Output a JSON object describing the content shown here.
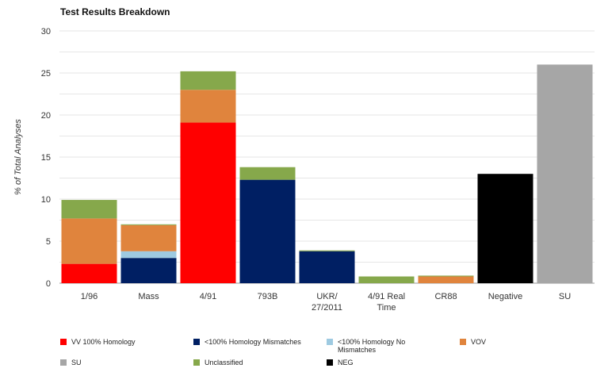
{
  "chart_data": {
    "type": "bar",
    "stacked": true,
    "title": "Test Results Breakdown",
    "xlabel": "",
    "ylabel": "% of Total Analyses",
    "ylim": [
      0,
      30
    ],
    "yticks": [
      0,
      5,
      10,
      15,
      20,
      25,
      30
    ],
    "grid": true,
    "legend_position": "bottom",
    "categories": [
      "1/96",
      "Mass",
      "4/91",
      "793B",
      "UKR/ 27/2011",
      "4/91 Real Time",
      "CR88",
      "Negative",
      "SU"
    ],
    "series": [
      {
        "name": "VV 100% Homology",
        "color": "#ff0000",
        "values": [
          2.3,
          0,
          19.1,
          0,
          0,
          0,
          0,
          0,
          0
        ]
      },
      {
        "name": "<100% Homology Mismatches",
        "color": "#001f63",
        "values": [
          0,
          3.0,
          0,
          12.3,
          3.8,
          0,
          0,
          0,
          0
        ]
      },
      {
        "name": "<100% Homology No Mismatches",
        "color": "#9ecae1",
        "values": [
          0,
          0.8,
          0,
          0,
          0,
          0,
          0,
          0,
          0
        ]
      },
      {
        "name": "VOV",
        "color": "#e0843d",
        "values": [
          5.4,
          3.1,
          3.9,
          0,
          0,
          0,
          0.8,
          0,
          0
        ]
      },
      {
        "name": "SU",
        "color": "#a6a6a6",
        "values": [
          0,
          0,
          0,
          0,
          0,
          0,
          0,
          0,
          26.0
        ]
      },
      {
        "name": "Unclassified",
        "color": "#86a84b",
        "values": [
          2.2,
          0.1,
          2.2,
          1.5,
          0.1,
          0.8,
          0.1,
          0,
          0
        ]
      },
      {
        "name": "NEG",
        "color": "#000000",
        "values": [
          0,
          0,
          0,
          0,
          0,
          0,
          0,
          13.0,
          0
        ]
      }
    ]
  }
}
